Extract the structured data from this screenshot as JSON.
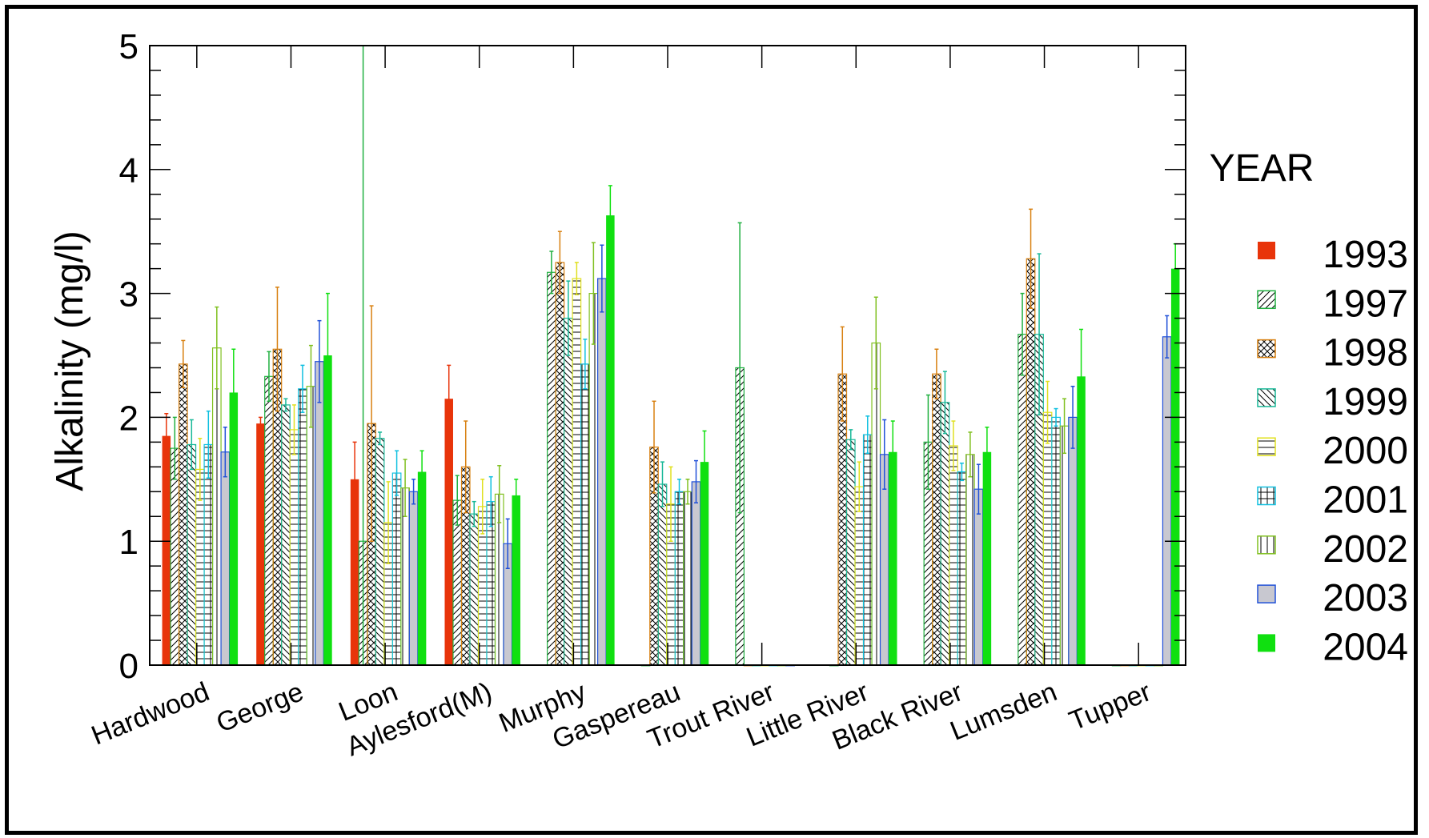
{
  "chart_data": {
    "type": "bar",
    "title": "",
    "xlabel": "",
    "ylabel": "Alkalinity (mg/l)",
    "ylim": [
      0,
      5
    ],
    "yticks": [
      0,
      1,
      2,
      3,
      4,
      5
    ],
    "grid": false,
    "legend_title": "YEAR",
    "legend_position": "right",
    "categories": [
      "Hardwood",
      "George",
      "Loon",
      "Aylesford(M)",
      "Murphy",
      "Gaspereau",
      "Trout River",
      "Little River",
      "Black River",
      "Lumsden",
      "Tupper"
    ],
    "series": [
      {
        "name": "1993",
        "color": "#e8340a",
        "pattern": "solid",
        "values": [
          1.85,
          1.95,
          1.5,
          2.15,
          0,
          0,
          0,
          0,
          0,
          0,
          0
        ],
        "errors": [
          0.18,
          0.05,
          0.3,
          0.27,
          0,
          0,
          0,
          0,
          0,
          0,
          0
        ]
      },
      {
        "name": "1997",
        "color": "#20b040",
        "pattern": "diag-right",
        "values": [
          1.75,
          2.33,
          1.0,
          1.33,
          3.17,
          0,
          2.4,
          0,
          1.8,
          2.67,
          0
        ],
        "errors": [
          0.25,
          0.2,
          4.0,
          0.2,
          0.17,
          0,
          1.17,
          0,
          0.38,
          0.33,
          0
        ]
      },
      {
        "name": "1998",
        "color": "#d88010",
        "pattern": "crosshatch",
        "values": [
          2.43,
          2.55,
          1.95,
          1.6,
          3.25,
          1.76,
          0,
          2.35,
          2.35,
          3.28,
          0
        ],
        "errors": [
          0.19,
          0.5,
          0.95,
          0.37,
          0.25,
          0.37,
          0,
          0.38,
          0.2,
          0.4,
          0
        ]
      },
      {
        "name": "1999",
        "color": "#18b898",
        "pattern": "diag-left",
        "values": [
          1.78,
          2.1,
          1.83,
          1.22,
          2.8,
          1.46,
          0,
          1.82,
          2.12,
          2.67,
          0
        ],
        "errors": [
          0.2,
          0.05,
          0.05,
          0.1,
          0.3,
          0.18,
          0,
          0.08,
          0.25,
          0.65,
          0
        ]
      },
      {
        "name": "2000",
        "color": "#e0e020",
        "pattern": "horizontal",
        "values": [
          1.58,
          1.9,
          1.15,
          1.28,
          3.12,
          1.3,
          0,
          1.44,
          1.77,
          2.04,
          0
        ],
        "errors": [
          0.25,
          0.2,
          0.33,
          0.22,
          0.13,
          0.3,
          0,
          0.2,
          0.2,
          0.25,
          0
        ]
      },
      {
        "name": "2001",
        "color": "#10c0e0",
        "pattern": "grid",
        "values": [
          1.78,
          2.23,
          1.55,
          1.32,
          2.43,
          1.4,
          0,
          1.86,
          1.56,
          2.0,
          0
        ],
        "errors": [
          0.27,
          0.19,
          0.18,
          0.2,
          0.2,
          0.1,
          0,
          0.15,
          0.07,
          0.07,
          0
        ]
      },
      {
        "name": "2002",
        "color": "#80c020",
        "pattern": "vertical",
        "values": [
          2.56,
          2.25,
          1.43,
          1.38,
          3.0,
          1.4,
          0,
          2.6,
          1.7,
          1.93,
          0
        ],
        "errors": [
          0.33,
          0.33,
          0.23,
          0.23,
          0.41,
          0.1,
          0,
          0.37,
          0.18,
          0.22,
          0
        ]
      },
      {
        "name": "2003",
        "color": "#2050d8",
        "pattern": "gray",
        "values": [
          1.72,
          2.45,
          1.4,
          0.98,
          3.12,
          1.48,
          0,
          1.7,
          1.42,
          2.0,
          2.65
        ],
        "errors": [
          0.2,
          0.33,
          0.1,
          0.2,
          0.27,
          0.17,
          0,
          0.28,
          0.2,
          0.25,
          0.17
        ]
      },
      {
        "name": "2004",
        "color": "#10e010",
        "pattern": "solid",
        "values": [
          2.2,
          2.5,
          1.56,
          1.37,
          3.63,
          1.64,
          0,
          1.72,
          1.72,
          2.33,
          3.2
        ],
        "errors": [
          0.35,
          0.5,
          0.17,
          0.13,
          0.24,
          0.25,
          0,
          0.25,
          0.2,
          0.38,
          0.2
        ]
      }
    ]
  }
}
